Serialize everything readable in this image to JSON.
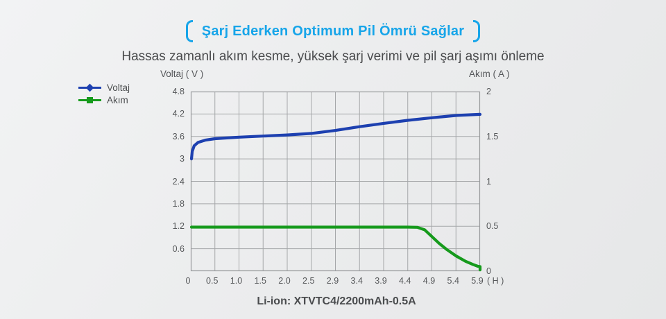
{
  "header": {
    "title": "Şarj Ederken Optimum Pil Ömrü Sağlar",
    "subtitle": "Hassas zamanlı akım kesme, yüksek şarj verimi ve pil şarj aşımı önleme",
    "accent_color": "#17a5e9"
  },
  "legend": {
    "items": [
      {
        "label": "Voltaj",
        "color": "#1d40b0",
        "marker": "diamond"
      },
      {
        "label": "Akım",
        "color": "#169a1c",
        "marker": "square"
      }
    ]
  },
  "caption": "Li-ion: XTVTC4/2200mAh-0.5A",
  "chart_data": {
    "type": "line",
    "ylabel_left": "Voltaj ( V )",
    "ylabel_right": "Akım ( A )",
    "x_unit": "( H )",
    "x_tick_labels": [
      "0",
      "0.5",
      "1.0",
      "1.5",
      "2.0",
      "2.5",
      "2.9",
      "3.4",
      "3.9",
      "4.4",
      "4.9",
      "5.4",
      "5.9"
    ],
    "x_tick_values": [
      0,
      0.5,
      1.0,
      1.5,
      2.0,
      2.5,
      2.9,
      3.4,
      3.9,
      4.4,
      4.9,
      5.4,
      5.9
    ],
    "grid": true,
    "grid_color": "#a5a7a9",
    "y_left": {
      "min": 0,
      "max": 4.8,
      "grid_step": 0.6,
      "tick_labels": [
        "4.8",
        "4.2",
        "3.6",
        "3",
        "2.4",
        "1.8",
        "1.2",
        "0.6"
      ]
    },
    "y_right": {
      "min": 0,
      "max": 2,
      "tick_labels": [
        "2",
        "1.5",
        "1",
        "0.5",
        "0"
      ]
    },
    "series": [
      {
        "name": "Voltaj",
        "axis": "left",
        "color": "#1d40b0",
        "points": [
          [
            0.015,
            3.0
          ],
          [
            0.03,
            3.2
          ],
          [
            0.07,
            3.35
          ],
          [
            0.15,
            3.44
          ],
          [
            0.3,
            3.5
          ],
          [
            0.5,
            3.54
          ],
          [
            0.75,
            3.56
          ],
          [
            1.0,
            3.58
          ],
          [
            1.5,
            3.61
          ],
          [
            2.0,
            3.64
          ],
          [
            2.5,
            3.68
          ],
          [
            2.9,
            3.76
          ],
          [
            3.4,
            3.86
          ],
          [
            3.9,
            3.95
          ],
          [
            4.4,
            4.03
          ],
          [
            4.9,
            4.1
          ],
          [
            5.4,
            4.16
          ],
          [
            5.7,
            4.18
          ],
          [
            5.9,
            4.19
          ]
        ]
      },
      {
        "name": "Akım",
        "axis": "right",
        "color": "#169a1c",
        "points": [
          [
            0.015,
            0.49
          ],
          [
            0.5,
            0.49
          ],
          [
            1.0,
            0.49
          ],
          [
            1.5,
            0.49
          ],
          [
            2.0,
            0.49
          ],
          [
            2.5,
            0.49
          ],
          [
            2.9,
            0.49
          ],
          [
            3.4,
            0.49
          ],
          [
            3.9,
            0.49
          ],
          [
            4.4,
            0.49
          ],
          [
            4.6,
            0.488
          ],
          [
            4.75,
            0.46
          ],
          [
            4.9,
            0.385
          ],
          [
            5.05,
            0.31
          ],
          [
            5.2,
            0.245
          ],
          [
            5.4,
            0.17
          ],
          [
            5.6,
            0.11
          ],
          [
            5.75,
            0.075
          ],
          [
            5.85,
            0.055
          ],
          [
            5.9,
            0.05
          ],
          [
            5.9,
            0.015
          ]
        ]
      }
    ]
  }
}
